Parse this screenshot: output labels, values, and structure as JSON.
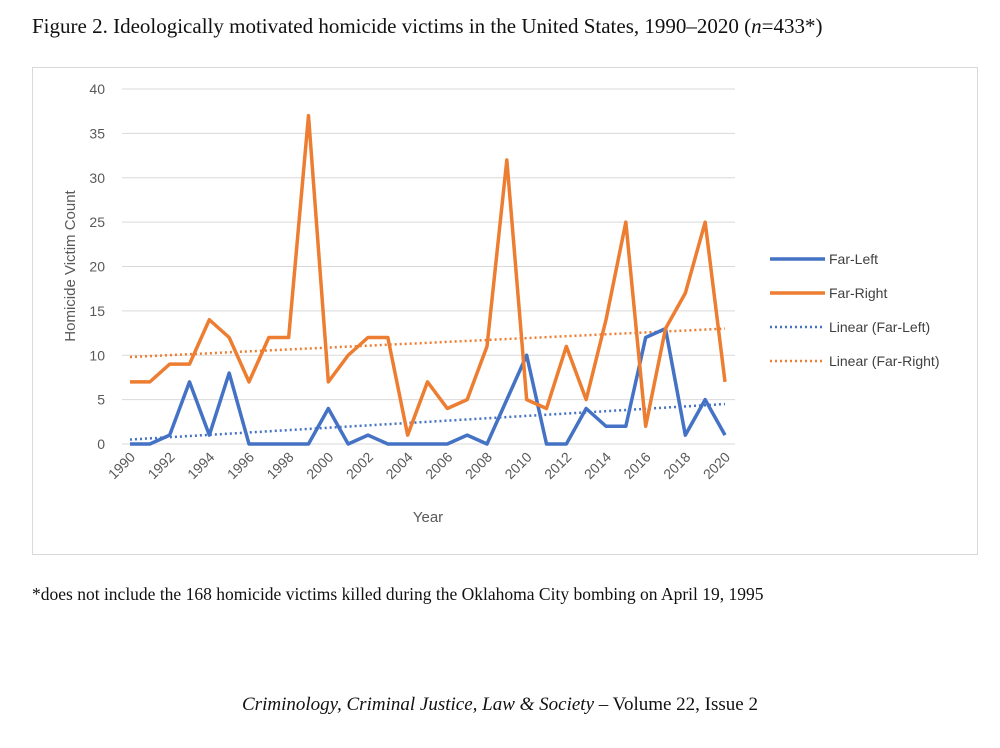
{
  "title_prefix": "Figure 2. Ideologically motivated homicide victims in the United States, 1990–2020 (",
  "title_n": "n",
  "title_suffix": "=433*)",
  "note": "*does not include the 168 homicide victims killed during the Oklahoma City bombing on April 19, 1995",
  "footer_journal": "Criminology, Criminal Justice, Law & Society",
  "footer_rest": " – Volume 22, Issue 2",
  "chart_data": {
    "type": "line",
    "title": "",
    "xlabel": "Year",
    "ylabel": "Homicide Victim Count",
    "ylim": [
      0,
      40
    ],
    "yticks": [
      0,
      5,
      10,
      15,
      20,
      25,
      30,
      35,
      40
    ],
    "xticks": [
      1990,
      1992,
      1994,
      1996,
      1998,
      2000,
      2002,
      2004,
      2006,
      2008,
      2010,
      2012,
      2014,
      2016,
      2018,
      2020
    ],
    "grid": true,
    "legend": "right",
    "x": [
      1990,
      1991,
      1992,
      1993,
      1994,
      1995,
      1996,
      1997,
      1998,
      1999,
      2000,
      2001,
      2002,
      2003,
      2004,
      2005,
      2006,
      2007,
      2008,
      2009,
      2010,
      2011,
      2012,
      2013,
      2014,
      2015,
      2016,
      2017,
      2018,
      2019,
      2020
    ],
    "series": [
      {
        "name": "Far-Left",
        "color": "#4472c4",
        "values": [
          0,
          0,
          1,
          7,
          1,
          8,
          0,
          0,
          0,
          0,
          4,
          0,
          1,
          0,
          0,
          0,
          0,
          1,
          0,
          5,
          10,
          0,
          0,
          4,
          2,
          2,
          12,
          13,
          1,
          5,
          1
        ]
      },
      {
        "name": "Far-Right",
        "color": "#ed7d31",
        "values": [
          7,
          7,
          9,
          9,
          14,
          12,
          7,
          12,
          12,
          37,
          7,
          10,
          12,
          12,
          1,
          7,
          4,
          5,
          11,
          32,
          5,
          4,
          11,
          5,
          14,
          25,
          2,
          13,
          17,
          25,
          7
        ]
      }
    ],
    "trendlines": [
      {
        "name": "Linear (Far-Left)",
        "color": "#4472c4",
        "start": 0.5,
        "end": 4.5
      },
      {
        "name": "Linear (Far-Right)",
        "color": "#ed7d31",
        "start": 9.8,
        "end": 13.0
      }
    ]
  }
}
